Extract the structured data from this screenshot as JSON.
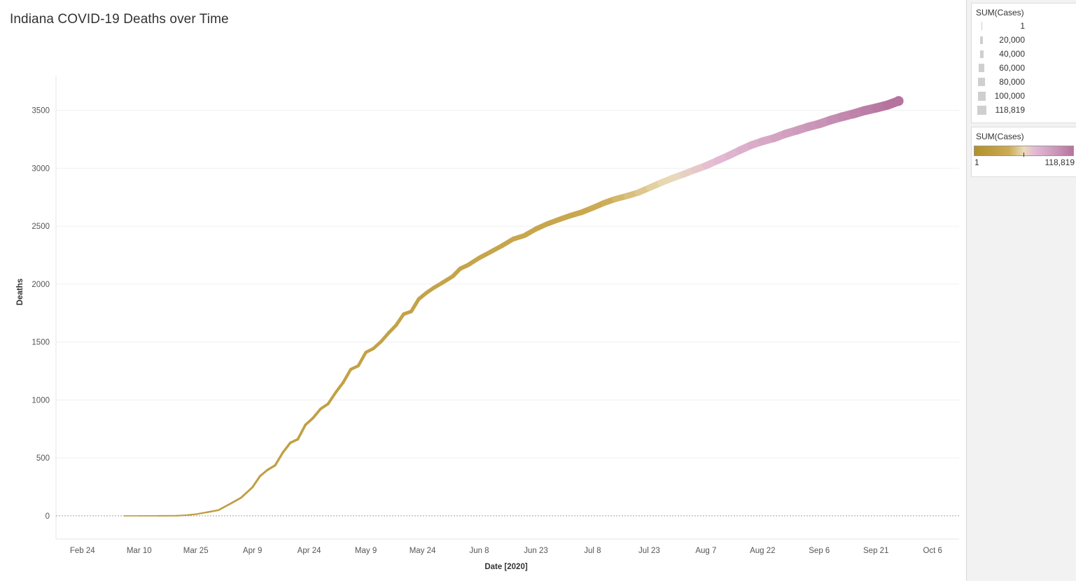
{
  "chart_data": {
    "type": "line",
    "title": "Indiana COVID-19 Deaths over Time",
    "xlabel": "Date [2020]",
    "ylabel": "Deaths",
    "x_ticks": [
      "Feb 24",
      "Mar 10",
      "Mar 25",
      "Apr 9",
      "Apr 24",
      "May 9",
      "May 24",
      "Jun 8",
      "Jun 23",
      "Jul 8",
      "Jul 23",
      "Aug 7",
      "Aug 22",
      "Sep 6",
      "Sep 21",
      "Oct 6"
    ],
    "y_ticks": [
      0,
      500,
      1000,
      1500,
      2000,
      2500,
      3000,
      3500
    ],
    "ylim": [
      -200,
      3800
    ],
    "grid": true,
    "series": [
      {
        "points": [
          [
            "2020-03-06",
            0
          ],
          [
            "2020-03-10",
            0
          ],
          [
            "2020-03-15",
            0
          ],
          [
            "2020-03-20",
            1
          ],
          [
            "2020-03-23",
            7
          ],
          [
            "2020-03-25",
            14
          ],
          [
            "2020-03-28",
            31
          ],
          [
            "2020-03-31",
            49
          ],
          [
            "2020-04-03",
            102
          ],
          [
            "2020-04-06",
            157
          ],
          [
            "2020-04-09",
            247
          ],
          [
            "2020-04-11",
            343
          ],
          [
            "2020-04-13",
            397
          ],
          [
            "2020-04-15",
            436
          ],
          [
            "2020-04-17",
            545
          ],
          [
            "2020-04-19",
            630
          ],
          [
            "2020-04-21",
            661
          ],
          [
            "2020-04-23",
            785
          ],
          [
            "2020-04-25",
            844
          ],
          [
            "2020-04-27",
            922
          ],
          [
            "2020-04-29",
            966
          ],
          [
            "2020-05-01",
            1064
          ],
          [
            "2020-05-03",
            1151
          ],
          [
            "2020-05-05",
            1264
          ],
          [
            "2020-05-07",
            1295
          ],
          [
            "2020-05-09",
            1411
          ],
          [
            "2020-05-11",
            1444
          ],
          [
            "2020-05-13",
            1503
          ],
          [
            "2020-05-15",
            1578
          ],
          [
            "2020-05-17",
            1645
          ],
          [
            "2020-05-19",
            1741
          ],
          [
            "2020-05-21",
            1764
          ],
          [
            "2020-05-23",
            1871
          ],
          [
            "2020-05-25",
            1924
          ],
          [
            "2020-05-27",
            1969
          ],
          [
            "2020-05-29",
            2007
          ],
          [
            "2020-06-01",
            2068
          ],
          [
            "2020-06-03",
            2134
          ],
          [
            "2020-06-05",
            2164
          ],
          [
            "2020-06-08",
            2226
          ],
          [
            "2020-06-11",
            2278
          ],
          [
            "2020-06-14",
            2331
          ],
          [
            "2020-06-17",
            2389
          ],
          [
            "2020-06-20",
            2420
          ],
          [
            "2020-06-23",
            2476
          ],
          [
            "2020-06-26",
            2520
          ],
          [
            "2020-06-29",
            2556
          ],
          [
            "2020-07-02",
            2590
          ],
          [
            "2020-07-05",
            2619
          ],
          [
            "2020-07-08",
            2658
          ],
          [
            "2020-07-11",
            2700
          ],
          [
            "2020-07-14",
            2734
          ],
          [
            "2020-07-17",
            2760
          ],
          [
            "2020-07-20",
            2789
          ],
          [
            "2020-07-23",
            2831
          ],
          [
            "2020-07-26",
            2873
          ],
          [
            "2020-07-29",
            2913
          ],
          [
            "2020-08-01",
            2948
          ],
          [
            "2020-08-04",
            2986
          ],
          [
            "2020-08-07",
            3022
          ],
          [
            "2020-08-10",
            3066
          ],
          [
            "2020-08-13",
            3109
          ],
          [
            "2020-08-16",
            3156
          ],
          [
            "2020-08-19",
            3200
          ],
          [
            "2020-08-22",
            3233
          ],
          [
            "2020-08-25",
            3260
          ],
          [
            "2020-08-28",
            3297
          ],
          [
            "2020-08-31",
            3326
          ],
          [
            "2020-09-03",
            3357
          ],
          [
            "2020-09-06",
            3383
          ],
          [
            "2020-09-09",
            3416
          ],
          [
            "2020-09-12",
            3444
          ],
          [
            "2020-09-15",
            3469
          ],
          [
            "2020-09-18",
            3498
          ],
          [
            "2020-09-21",
            3520
          ],
          [
            "2020-09-24",
            3545
          ],
          [
            "2020-09-27",
            3581
          ]
        ]
      }
    ],
    "encoding": {
      "color": "SUM(Cases)",
      "size": "SUM(Cases)",
      "color_scale": [
        "#b1902b",
        "#ccab55",
        "#eadcb9",
        "#e4bbd4",
        "#c892b5",
        "#b5739e"
      ]
    }
  },
  "legends": {
    "size": {
      "title": "SUM(Cases)",
      "items": [
        "1",
        "20,000",
        "40,000",
        "60,000",
        "80,000",
        "100,000",
        "118,819"
      ]
    },
    "color": {
      "title": "SUM(Cases)",
      "min_label": "1",
      "max_label": "118,819"
    }
  }
}
